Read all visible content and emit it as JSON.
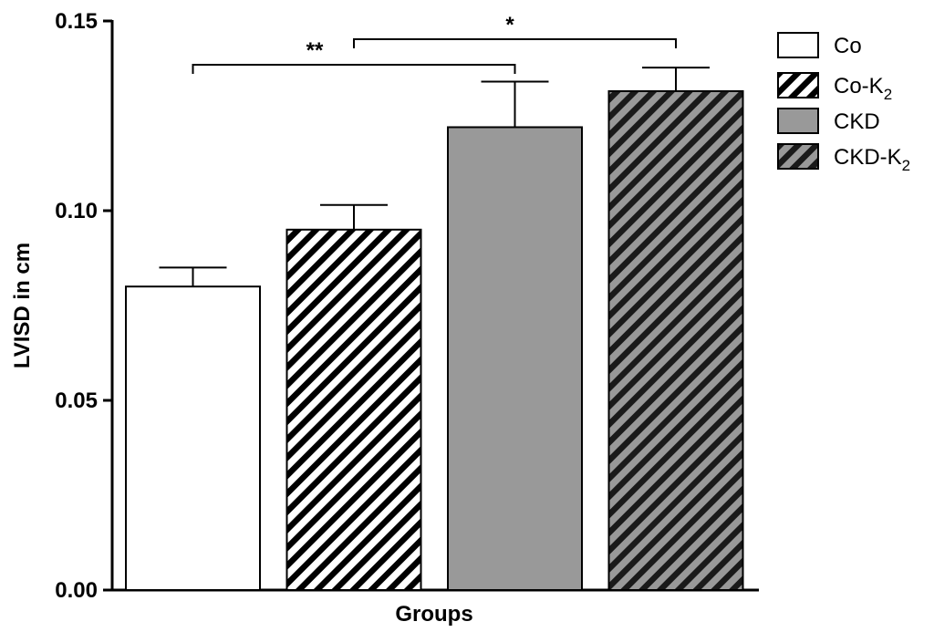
{
  "chart_data": {
    "type": "bar",
    "xlabel": "Groups",
    "ylabel": "LVISD in cm",
    "ylim": [
      0,
      0.15
    ],
    "yticks": [
      {
        "value": 0.0,
        "label": "0.00"
      },
      {
        "value": 0.05,
        "label": "0.05"
      },
      {
        "value": 0.1,
        "label": "0.10"
      },
      {
        "value": 0.15,
        "label": "0.15"
      }
    ],
    "series": [
      {
        "key": "co",
        "name": "Co",
        "name_main": "Co",
        "name_sub": "",
        "value": 0.08,
        "error": 0.005,
        "fill": "#ffffff",
        "hatch": false
      },
      {
        "key": "co-k2",
        "name": "Co-K2",
        "name_main": "Co-K",
        "name_sub": "2",
        "value": 0.095,
        "error": 0.0065,
        "fill": "#ffffff",
        "hatch": true
      },
      {
        "key": "ckd",
        "name": "CKD",
        "name_main": "CKD",
        "name_sub": "",
        "value": 0.122,
        "error": 0.012,
        "fill": "#999999",
        "hatch": false
      },
      {
        "key": "ckd-k2",
        "name": "CKD-K2",
        "name_main": "CKD-K",
        "name_sub": "2",
        "value": 0.1315,
        "error": 0.0062,
        "fill": "#999999",
        "hatch": true
      }
    ],
    "significance": [
      {
        "label": "**",
        "from": 0,
        "to": 2
      },
      {
        "label": "*",
        "from": 1,
        "to": 3
      }
    ],
    "legend_position": "top-right",
    "grid": false
  }
}
